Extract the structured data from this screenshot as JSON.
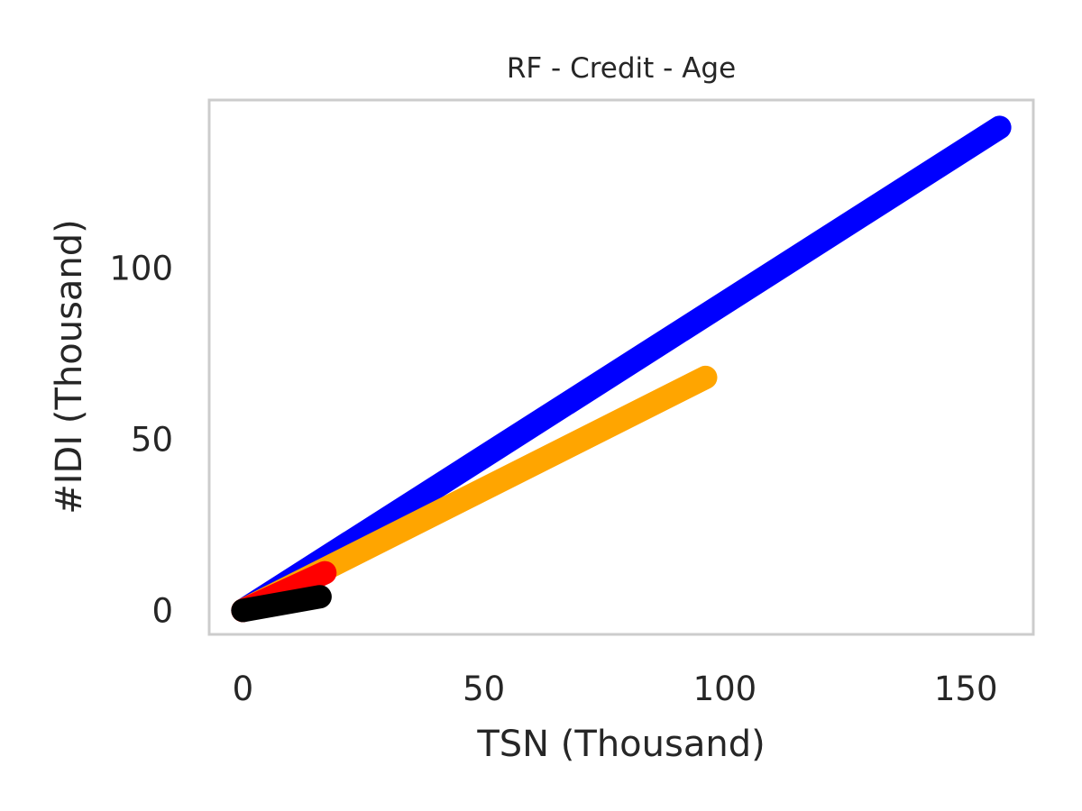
{
  "chart_data": {
    "type": "line",
    "title": "RF - Credit - Age",
    "xlabel": "TSN (Thousand)",
    "ylabel": "#IDI (Thousand)",
    "xlim": [
      -7,
      164
    ],
    "ylim": [
      -7,
      149
    ],
    "xticks": [
      0,
      50,
      100,
      150
    ],
    "yticks": [
      0,
      50,
      100
    ],
    "grid": false,
    "legend": "none",
    "frame_color": "#cccccc",
    "series": [
      {
        "color": "#0000ff",
        "x": [
          0,
          157
        ],
        "y": [
          0,
          141
        ]
      },
      {
        "color": "#ffa500",
        "x": [
          0,
          96
        ],
        "y": [
          0,
          68
        ]
      },
      {
        "color": "#ff0000",
        "x": [
          0,
          17
        ],
        "y": [
          0,
          11
        ]
      },
      {
        "color": "#000000",
        "x": [
          0,
          16
        ],
        "y": [
          0,
          4
        ]
      }
    ]
  }
}
